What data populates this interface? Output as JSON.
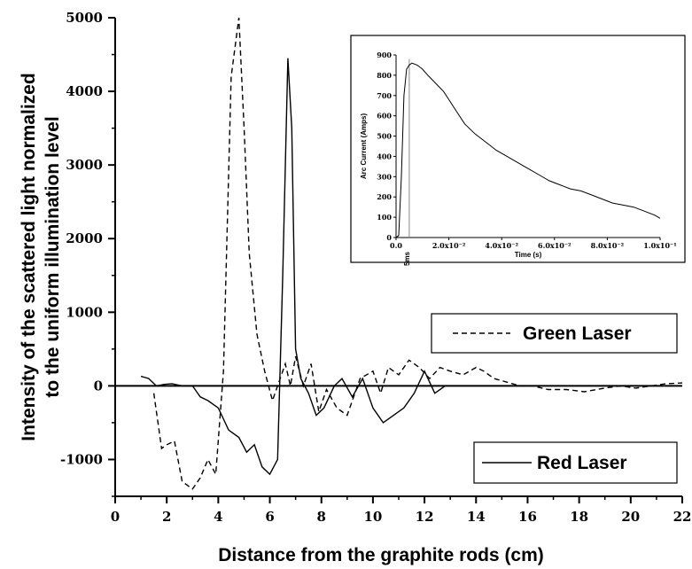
{
  "chart_data": [
    {
      "type": "line",
      "xlabel": "Distance from the graphite rods (cm)",
      "ylabel_lines": [
        "Intensity of the scattered light normalized",
        "to the uniform illumination level"
      ],
      "xlim": [
        0,
        22
      ],
      "ylim": [
        -1500,
        5000
      ],
      "xticks": [
        "0",
        "2",
        "4",
        "6",
        "8",
        "10",
        "12",
        "14",
        "16",
        "18",
        "20",
        "22"
      ],
      "yticks": [
        "-1000",
        "0",
        "1000",
        "2000",
        "3000",
        "4000",
        "5000"
      ],
      "zero_line": true,
      "grid": false,
      "legend": "right, two separate boxes",
      "series": [
        {
          "name": "Green Laser",
          "style": "dashed",
          "color": "#000000",
          "x": [
            1.5,
            1.8,
            2.0,
            2.3,
            2.6,
            3.0,
            3.3,
            3.6,
            3.9,
            4.2,
            4.5,
            4.8,
            5.0,
            5.2,
            5.5,
            5.8,
            6.1,
            6.3,
            6.6,
            6.8,
            7.0,
            7.3,
            7.6,
            7.9,
            8.2,
            8.6,
            9.0,
            9.5,
            10.0,
            10.3,
            10.6,
            11.0,
            11.4,
            11.8,
            12.2,
            12.6,
            13.0,
            13.5,
            14.0,
            14.3,
            14.7,
            15.2,
            15.7,
            16.2,
            16.8,
            17.5,
            18.2,
            19.0,
            19.6,
            20.2,
            20.8,
            21.4,
            22.0
          ],
          "y": [
            -100,
            -850,
            -800,
            -750,
            -1300,
            -1400,
            -1250,
            -1000,
            -1200,
            200,
            4200,
            5000,
            3500,
            1800,
            700,
            200,
            -200,
            0,
            300,
            0,
            400,
            0,
            300,
            -350,
            -50,
            -300,
            -400,
            100,
            200,
            -100,
            250,
            150,
            350,
            250,
            100,
            250,
            200,
            150,
            250,
            200,
            100,
            50,
            0,
            0,
            -50,
            -50,
            -80,
            -30,
            0,
            -30,
            0,
            30,
            40
          ]
        },
        {
          "name": "Red Laser",
          "style": "solid",
          "color": "#000000",
          "x": [
            1.0,
            1.3,
            1.6,
            1.9,
            2.2,
            2.6,
            3.0,
            3.3,
            3.6,
            4.0,
            4.4,
            4.8,
            5.1,
            5.4,
            5.7,
            6.0,
            6.3,
            6.5,
            6.7,
            6.85,
            7.0,
            7.2,
            7.5,
            7.8,
            8.1,
            8.5,
            8.8,
            9.2,
            9.6,
            10.0,
            10.4,
            10.8,
            11.2,
            11.6,
            12.0,
            12.4,
            12.8
          ],
          "y": [
            130,
            100,
            0,
            20,
            30,
            0,
            0,
            -150,
            -200,
            -300,
            -600,
            -700,
            -900,
            -800,
            -1100,
            -1200,
            -1000,
            1500,
            4450,
            3500,
            500,
            100,
            -100,
            -400,
            -300,
            0,
            100,
            -150,
            100,
            -300,
            -500,
            -400,
            -300,
            -100,
            200,
            -100,
            0
          ]
        }
      ]
    },
    {
      "type": "line",
      "xlabel": "Time (s)",
      "ylabel": "Arc Current (Amps)",
      "xlim": [
        0,
        0.1
      ],
      "ylim": [
        0,
        900
      ],
      "xticks": [
        "0.0",
        "2.0x10⁻²",
        "4.0x10⁻²",
        "6.0x10⁻²",
        "8.0x10⁻²",
        "1.0x10⁻¹"
      ],
      "yticks": [
        "0",
        "100",
        "200",
        "300",
        "400",
        "500",
        "600",
        "700",
        "800",
        "900"
      ],
      "annotation": "5ms",
      "series": [
        {
          "name": "",
          "style": "solid",
          "color": "#000000",
          "x": [
            0.0,
            0.001,
            0.002,
            0.003,
            0.004,
            0.005,
            0.006,
            0.008,
            0.01,
            0.012,
            0.015,
            0.018,
            0.02,
            0.023,
            0.026,
            0.03,
            0.034,
            0.038,
            0.042,
            0.046,
            0.05,
            0.054,
            0.058,
            0.062,
            0.066,
            0.07,
            0.074,
            0.078,
            0.082,
            0.086,
            0.09,
            0.094,
            0.098,
            0.1
          ],
          "y": [
            0,
            10,
            300,
            700,
            830,
            850,
            860,
            850,
            830,
            800,
            760,
            720,
            680,
            620,
            560,
            510,
            470,
            430,
            400,
            370,
            340,
            310,
            280,
            260,
            240,
            230,
            210,
            190,
            170,
            160,
            150,
            130,
            110,
            95
          ]
        }
      ]
    },
    {
      "type": "legend",
      "entries": [
        "Green Laser",
        "Red Laser"
      ]
    }
  ]
}
